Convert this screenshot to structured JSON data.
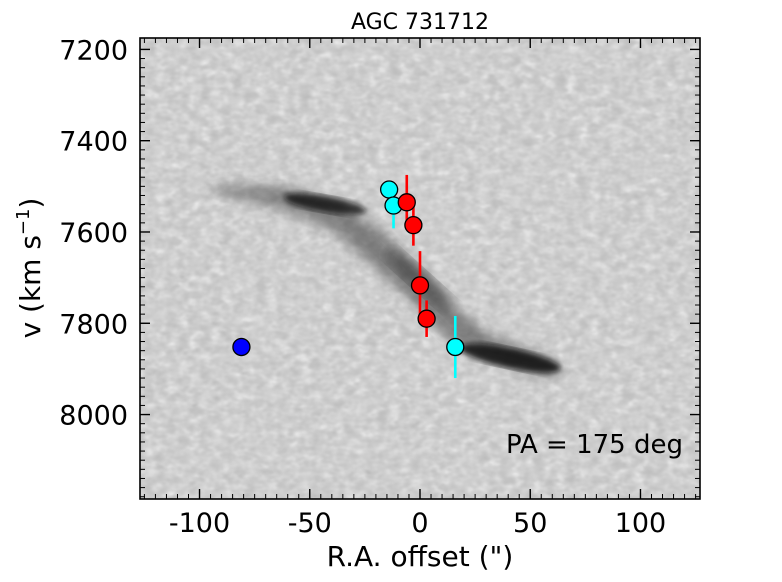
{
  "chart_data": {
    "type": "scatter",
    "title": "AGC 731712",
    "xlabel": "R.A. offset (\")",
    "ylabel_main": "v (km s",
    "ylabel_sup": "−1",
    "ylabel_close": ")",
    "xlim": [
      -127,
      127
    ],
    "ylim": [
      8185,
      7175
    ],
    "xticks": [
      -100,
      -50,
      0,
      50,
      100
    ],
    "xtick_labels": [
      "-100",
      "-50",
      "0",
      "50",
      "100"
    ],
    "yticks": [
      7200,
      7400,
      7600,
      7800,
      8000
    ],
    "ytick_labels": [
      "7200",
      "7400",
      "7600",
      "7800",
      "8000"
    ],
    "annotation": "PA = 175 deg",
    "background": "grayscale position-velocity diagram",
    "series": [
      {
        "name": "blue",
        "color": "#0000ff",
        "points": [
          {
            "x": -81,
            "y": 7852,
            "yerr": 20
          }
        ]
      },
      {
        "name": "cyan",
        "color": "#00ffff",
        "points": [
          {
            "x": -14,
            "y": 7507,
            "yerr": 5
          },
          {
            "x": -12,
            "y": 7542,
            "yerr": 50
          },
          {
            "x": 16,
            "y": 7852,
            "yerr": 68
          }
        ]
      },
      {
        "name": "red",
        "color": "#ff0000",
        "points": [
          {
            "x": -6,
            "y": 7535,
            "yerr": 60
          },
          {
            "x": -3,
            "y": 7585,
            "yerr": 45
          },
          {
            "x": 0,
            "y": 7717,
            "yerr": 75
          },
          {
            "x": 3,
            "y": 7790,
            "yerr": 40
          }
        ]
      }
    ]
  }
}
